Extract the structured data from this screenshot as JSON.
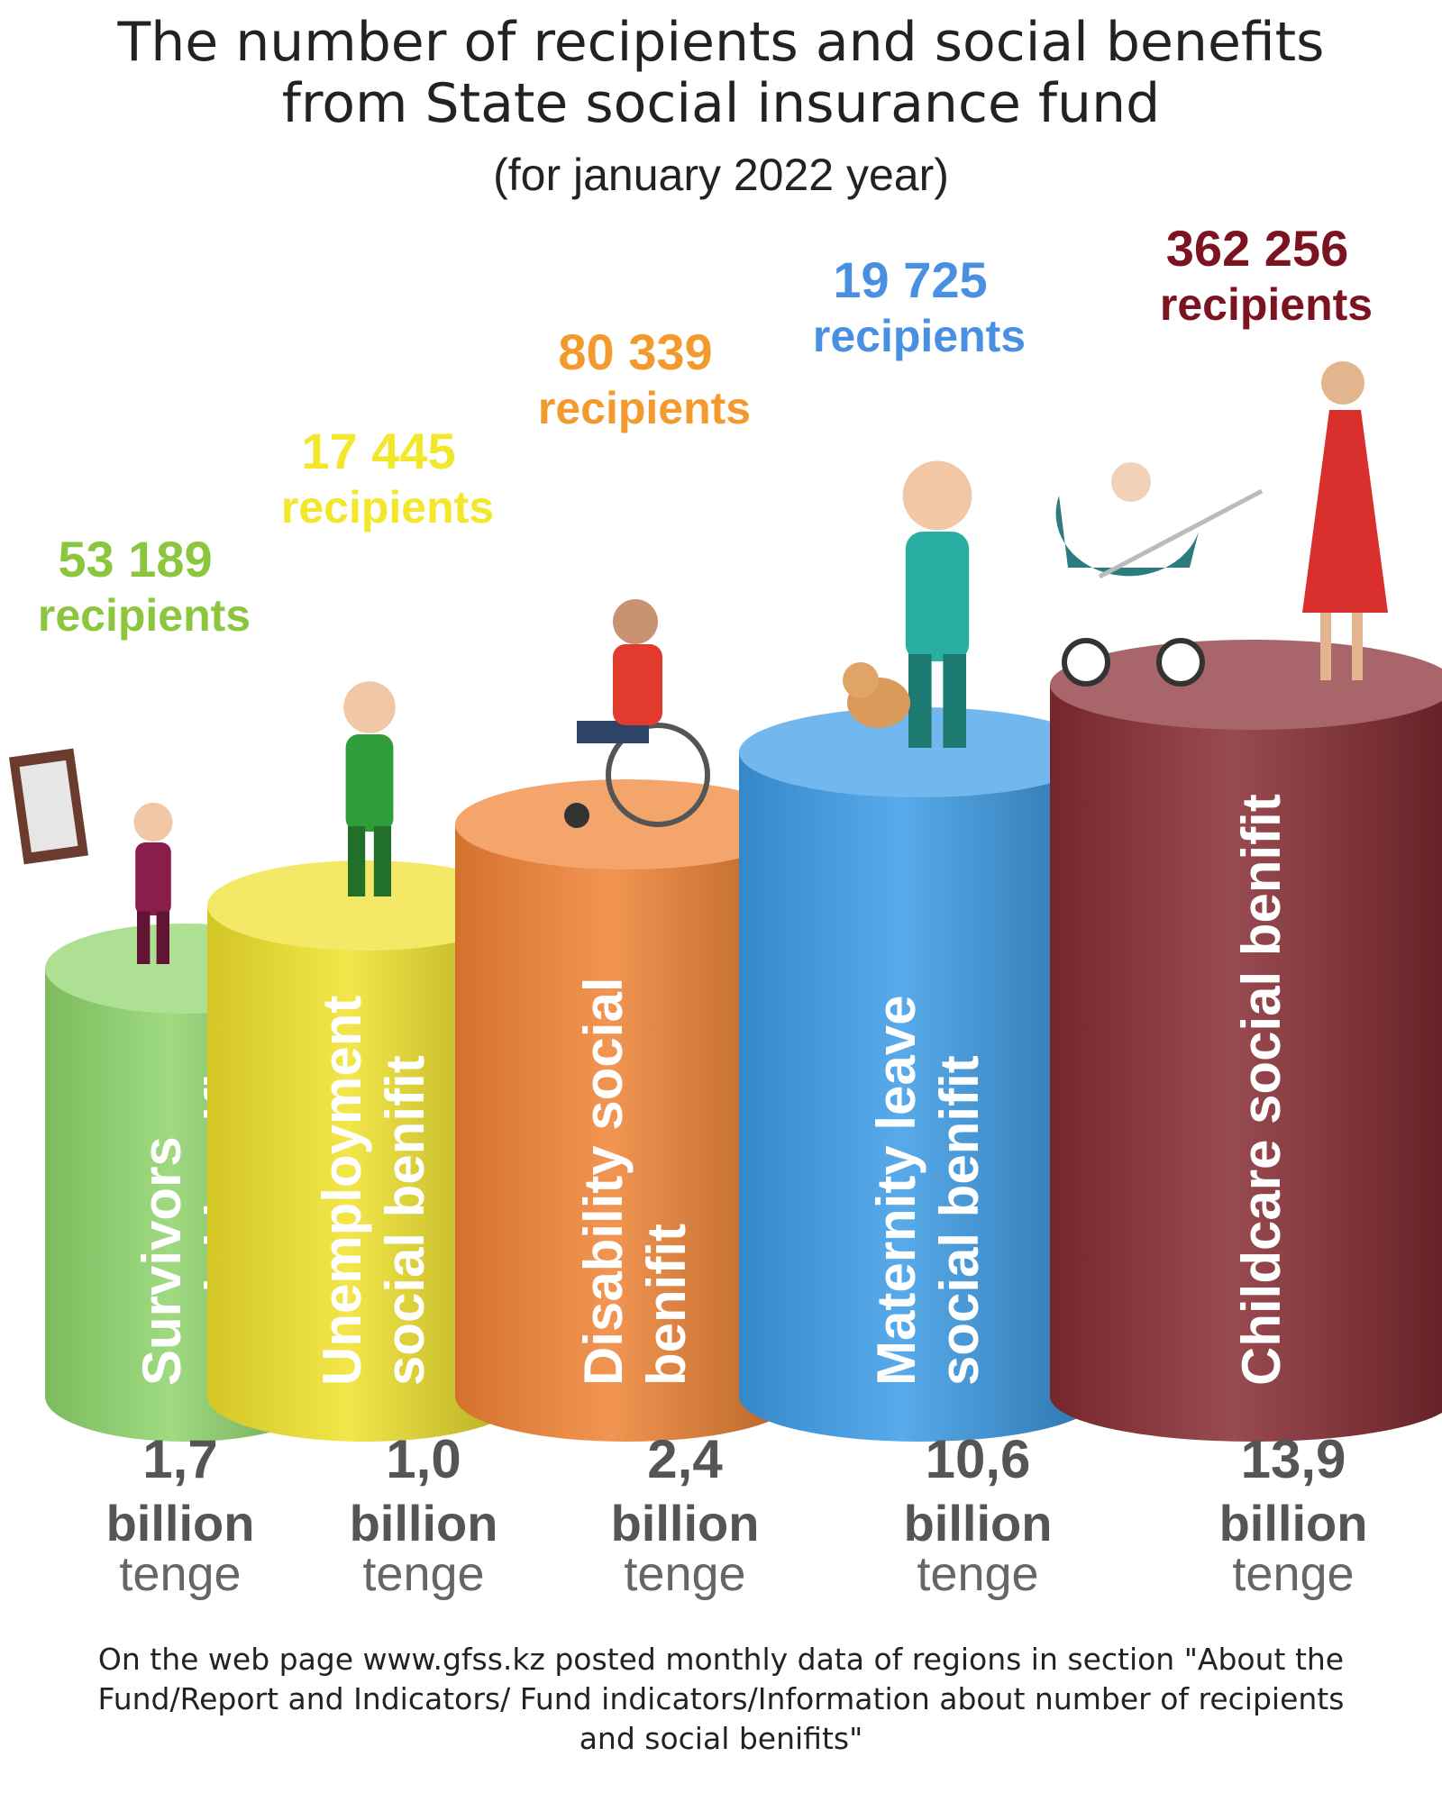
{
  "title_line1": "The number of recipients and social benefits",
  "title_line2": "from State social insurance fund",
  "subtitle": "(for january 2022 year)",
  "footnote": "On the web page www.gfss.kz posted monthly data of regions in section \"About the Fund/Report and Indicators/ Fund indicators/Information about number of recipients and social benifits\"",
  "chart_data": {
    "type": "bar",
    "categories": [
      "Survivors social benifit",
      "Unemployment social benifit",
      "Disability social benifit",
      "Maternity leave social benifit",
      "Childcare social benifit"
    ],
    "category_lines": [
      [
        "Survivors",
        "social benifit"
      ],
      [
        "Unemployment",
        "social benifit"
      ],
      [
        "Disability social",
        "benifit"
      ],
      [
        "Maternity leave",
        "social benifit"
      ],
      [
        "Childcare social benifit"
      ]
    ],
    "series": [
      {
        "values": [
          53189,
          17445,
          80339,
          19725,
          362256
        ]
      },
      {
        "values": [
          1.7,
          1.0,
          2.4,
          10.6,
          13.9
        ]
      }
    ],
    "recipients_labels": [
      "53 189",
      "17 445",
      "80 339",
      "19 725",
      "362 256"
    ],
    "recipients_word": "recipients",
    "amount_labels": [
      "1,7",
      "1,0",
      "2,4",
      "10,6",
      "13,9"
    ],
    "amount_unit_line1": "billion",
    "amount_unit_line2": "tenge",
    "colors": [
      "#8ed46b",
      "#f0e12a",
      "#f08233",
      "#3b9be6",
      "#862b31"
    ],
    "label_colors": [
      "#8cc63f",
      "#f2e72a",
      "#f39a2e",
      "#4a90e2",
      "#7b1420"
    ]
  }
}
